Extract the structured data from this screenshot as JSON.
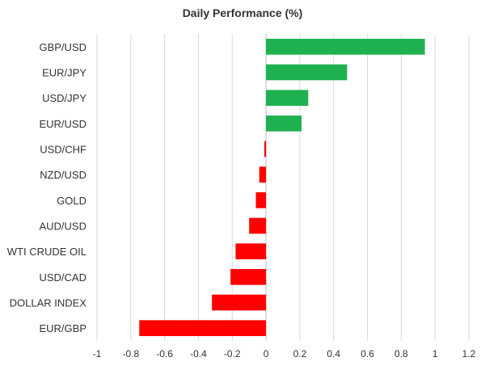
{
  "chart_data": {
    "type": "bar",
    "orientation": "horizontal",
    "title": "Daily Performance (%)",
    "xlabel": "",
    "ylabel": "",
    "categories": [
      "GBP/USD",
      "EUR/JPY",
      "USD/JPY",
      "EUR/USD",
      "USD/CHF",
      "NZD/USD",
      "GOLD",
      "AUD/USD",
      "WTI CRUDE OIL",
      "USD/CAD",
      "DOLLAR INDEX",
      "EUR/GBP"
    ],
    "values": [
      0.94,
      0.48,
      0.25,
      0.21,
      -0.01,
      -0.04,
      -0.06,
      -0.1,
      -0.18,
      -0.21,
      -0.32,
      -0.75
    ],
    "xlim": [
      -1,
      1.2
    ],
    "xticks": [
      -1,
      -0.8,
      -0.6,
      -0.4,
      -0.2,
      0,
      0.2,
      0.4,
      0.6,
      0.8,
      1,
      1.2
    ],
    "grid": "vertical",
    "legend": "none",
    "colors": {
      "positive": "#1fb150",
      "negative": "#ff0000",
      "grid": "#d9d9d9",
      "axis": "#bfbfbf"
    }
  }
}
